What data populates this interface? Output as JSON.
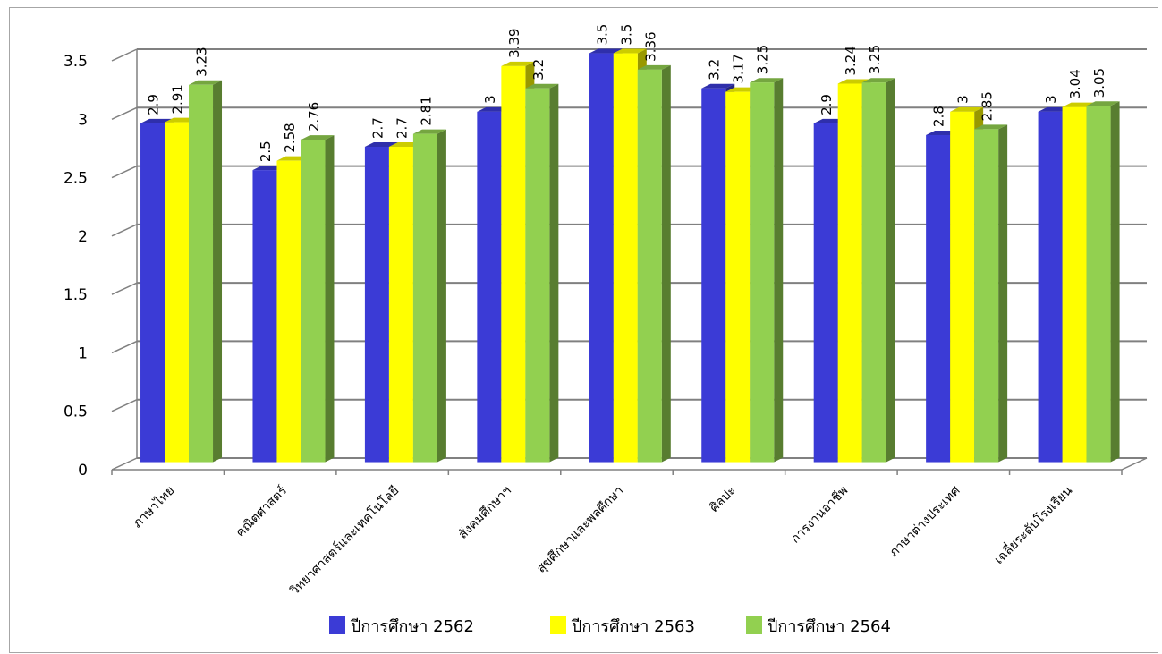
{
  "chart_data": {
    "type": "bar",
    "style": "3d-clustered-column",
    "title": "",
    "xlabel": "",
    "ylabel": "",
    "ylim": [
      0,
      3.5
    ],
    "yticks": [
      "0",
      "0.5",
      "1",
      "1.5",
      "2",
      "2.5",
      "3",
      "3.5"
    ],
    "grid": true,
    "legend_position": "bottom",
    "categories": [
      "ภาษาไทย",
      "คณิตศาสตร์",
      "วิทยาศาสตร์และเทคโนโลยี",
      "สังคมศึกษาฯ",
      "สุขศึกษาและพลศึกษา",
      "ศิลปะ",
      "การงานอาชีพ",
      "ภาษาต่างประเทศ",
      "เฉลี่ยระดับโรงเรียน"
    ],
    "series": [
      {
        "name": "ปีการศึกษา 2562",
        "color": "#3b3bd6",
        "values": [
          2.9,
          2.5,
          2.7,
          3,
          3.5,
          3.2,
          2.9,
          2.8,
          3
        ]
      },
      {
        "name": "ปีการศึกษา 2563",
        "color": "#ffff00",
        "values": [
          2.91,
          2.58,
          2.7,
          3.39,
          3.5,
          3.17,
          3.24,
          3,
          3.04
        ]
      },
      {
        "name": "ปีการศึกษา 2564",
        "color": "#92d050",
        "values": [
          3.23,
          2.76,
          2.81,
          3.2,
          3.36,
          3.25,
          3.25,
          2.85,
          3.05
        ]
      }
    ]
  }
}
